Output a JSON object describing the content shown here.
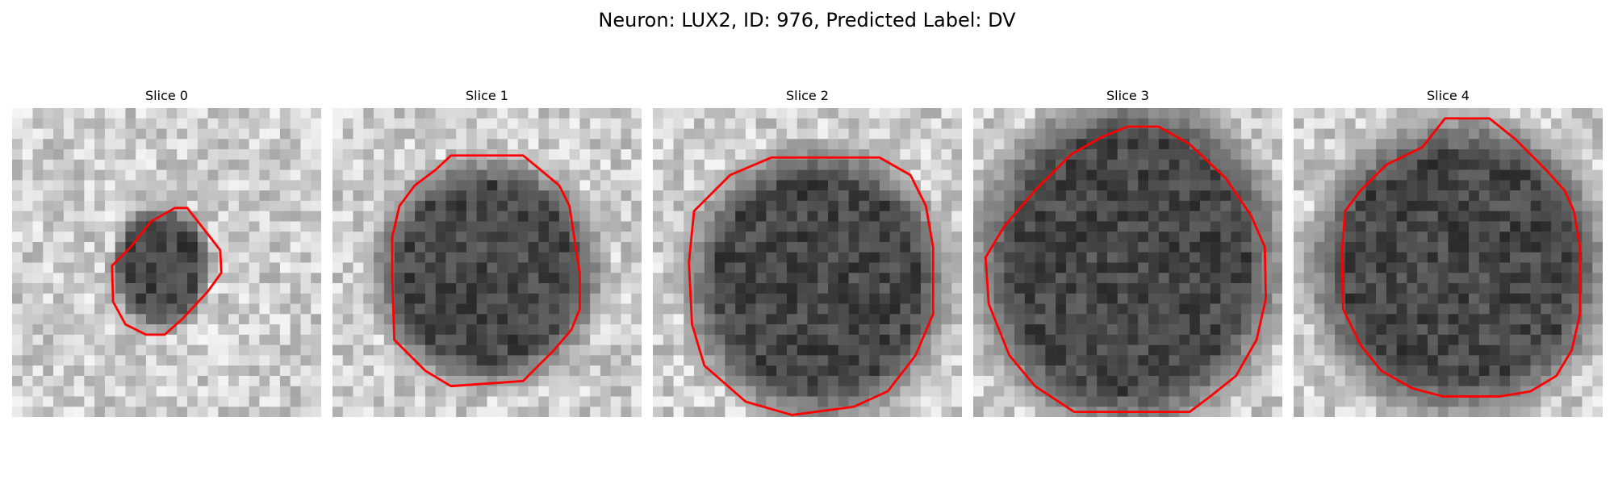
{
  "figure": {
    "title": "Neuron: LUX2, ID: 976, Predicted Label: DV"
  },
  "panels": [
    {
      "title": "Slice 0"
    },
    {
      "title": "Slice 1"
    },
    {
      "title": "Slice 2"
    },
    {
      "title": "Slice 3"
    },
    {
      "title": "Slice 4"
    }
  ],
  "colors": {
    "contour": "#ff0000",
    "background": "#ffffff"
  }
}
